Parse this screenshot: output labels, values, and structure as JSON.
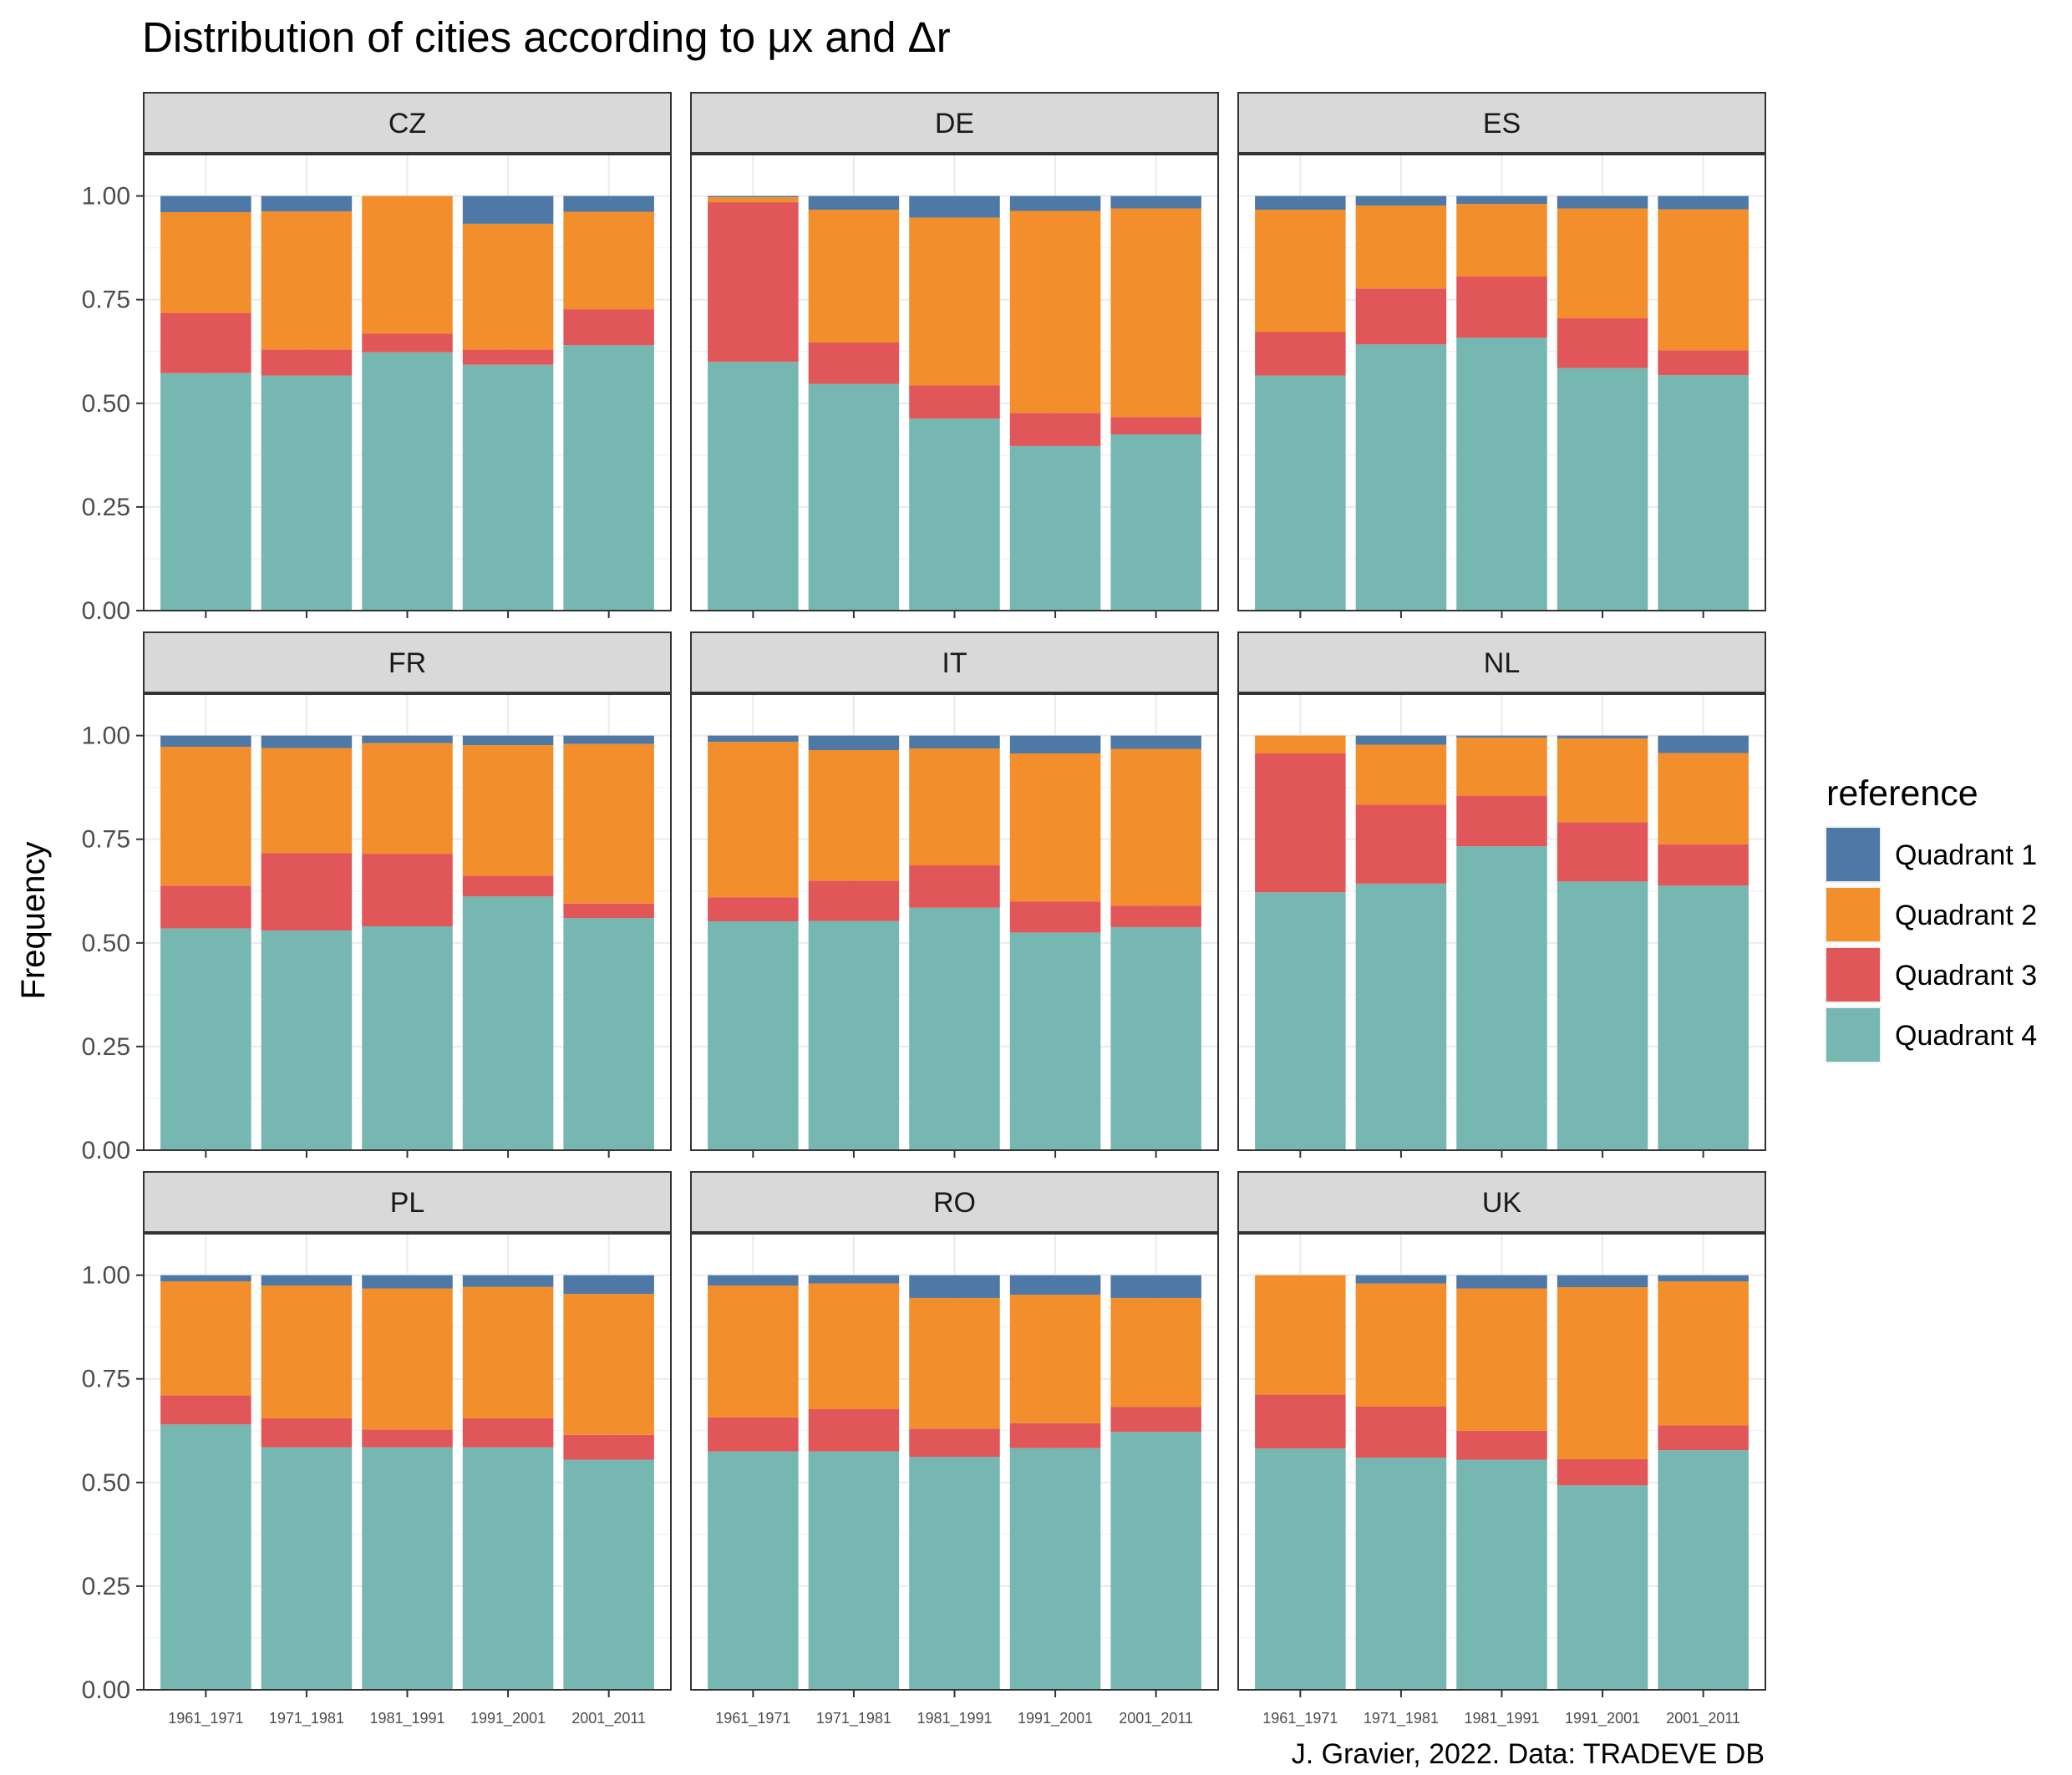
{
  "chart_data": {
    "type": "bar",
    "stacked": true,
    "faceted": true,
    "title": "Distribution of cities according to μx and Δr",
    "ylabel": "Frequency",
    "xlabel": "",
    "caption": "J. Gravier, 2022. Data: TRADEVE DB",
    "ylim": [
      0,
      1.1
    ],
    "yticks": [
      0,
      0.25,
      0.5,
      0.75,
      1.0
    ],
    "ytick_labels": [
      "0.00",
      "0.25",
      "0.50",
      "0.75",
      "1.00"
    ],
    "categories": [
      "1961_1971",
      "1971_1981",
      "1981_1991",
      "1991_2001",
      "2001_2011"
    ],
    "grid": true,
    "legend": {
      "title": "reference",
      "position": "right",
      "items": [
        {
          "name": "Quadrant 1",
          "color": "#4e79a7"
        },
        {
          "name": "Quadrant 2",
          "color": "#f28e2b"
        },
        {
          "name": "Quadrant 3",
          "color": "#e15759"
        },
        {
          "name": "Quadrant 4",
          "color": "#76b7b2"
        }
      ]
    },
    "facets": [
      {
        "name": "CZ",
        "q4": [
          0.573,
          0.567,
          0.623,
          0.593,
          0.64
        ],
        "q3": [
          0.145,
          0.063,
          0.045,
          0.037,
          0.087
        ],
        "q2": [
          0.243,
          0.333,
          0.332,
          0.303,
          0.235
        ],
        "q1": [
          0.039,
          0.037,
          0.0,
          0.067,
          0.038
        ]
      },
      {
        "name": "DE",
        "q4": [
          0.6,
          0.547,
          0.463,
          0.397,
          0.425
        ],
        "q3": [
          0.385,
          0.1,
          0.08,
          0.08,
          0.042
        ],
        "q2": [
          0.012,
          0.32,
          0.405,
          0.487,
          0.503
        ],
        "q1": [
          0.003,
          0.033,
          0.052,
          0.036,
          0.03
        ]
      },
      {
        "name": "ES",
        "q4": [
          0.567,
          0.642,
          0.658,
          0.585,
          0.568
        ],
        "q3": [
          0.105,
          0.135,
          0.148,
          0.12,
          0.06
        ],
        "q2": [
          0.295,
          0.2,
          0.175,
          0.265,
          0.34
        ],
        "q1": [
          0.033,
          0.023,
          0.019,
          0.03,
          0.032
        ]
      },
      {
        "name": "FR",
        "q4": [
          0.535,
          0.53,
          0.54,
          0.612,
          0.56
        ],
        "q3": [
          0.103,
          0.187,
          0.175,
          0.05,
          0.035
        ],
        "q2": [
          0.335,
          0.253,
          0.267,
          0.315,
          0.385
        ],
        "q1": [
          0.027,
          0.03,
          0.018,
          0.023,
          0.02
        ]
      },
      {
        "name": "IT",
        "q4": [
          0.552,
          0.553,
          0.585,
          0.525,
          0.538
        ],
        "q3": [
          0.058,
          0.097,
          0.102,
          0.075,
          0.052
        ],
        "q2": [
          0.375,
          0.315,
          0.282,
          0.357,
          0.378
        ],
        "q1": [
          0.015,
          0.035,
          0.031,
          0.043,
          0.032
        ]
      },
      {
        "name": "NL",
        "q4": [
          0.622,
          0.643,
          0.733,
          0.648,
          0.638
        ],
        "q3": [
          0.335,
          0.19,
          0.122,
          0.143,
          0.1
        ],
        "q2": [
          0.043,
          0.145,
          0.14,
          0.202,
          0.22
        ],
        "q1": [
          0.0,
          0.022,
          0.005,
          0.007,
          0.042
        ]
      },
      {
        "name": "PL",
        "q4": [
          0.64,
          0.585,
          0.585,
          0.585,
          0.555
        ],
        "q3": [
          0.07,
          0.07,
          0.043,
          0.07,
          0.06
        ],
        "q2": [
          0.275,
          0.32,
          0.34,
          0.317,
          0.34
        ],
        "q1": [
          0.015,
          0.025,
          0.032,
          0.028,
          0.045
        ]
      },
      {
        "name": "RO",
        "q4": [
          0.575,
          0.575,
          0.562,
          0.583,
          0.622
        ],
        "q3": [
          0.082,
          0.102,
          0.068,
          0.06,
          0.06
        ],
        "q2": [
          0.318,
          0.303,
          0.315,
          0.31,
          0.263
        ],
        "q1": [
          0.025,
          0.02,
          0.055,
          0.047,
          0.055
        ]
      },
      {
        "name": "UK",
        "q4": [
          0.582,
          0.56,
          0.555,
          0.493,
          0.578
        ],
        "q3": [
          0.13,
          0.123,
          0.07,
          0.063,
          0.06
        ],
        "q2": [
          0.288,
          0.297,
          0.343,
          0.415,
          0.347
        ],
        "q1": [
          0.0,
          0.02,
          0.032,
          0.029,
          0.015
        ]
      }
    ]
  }
}
